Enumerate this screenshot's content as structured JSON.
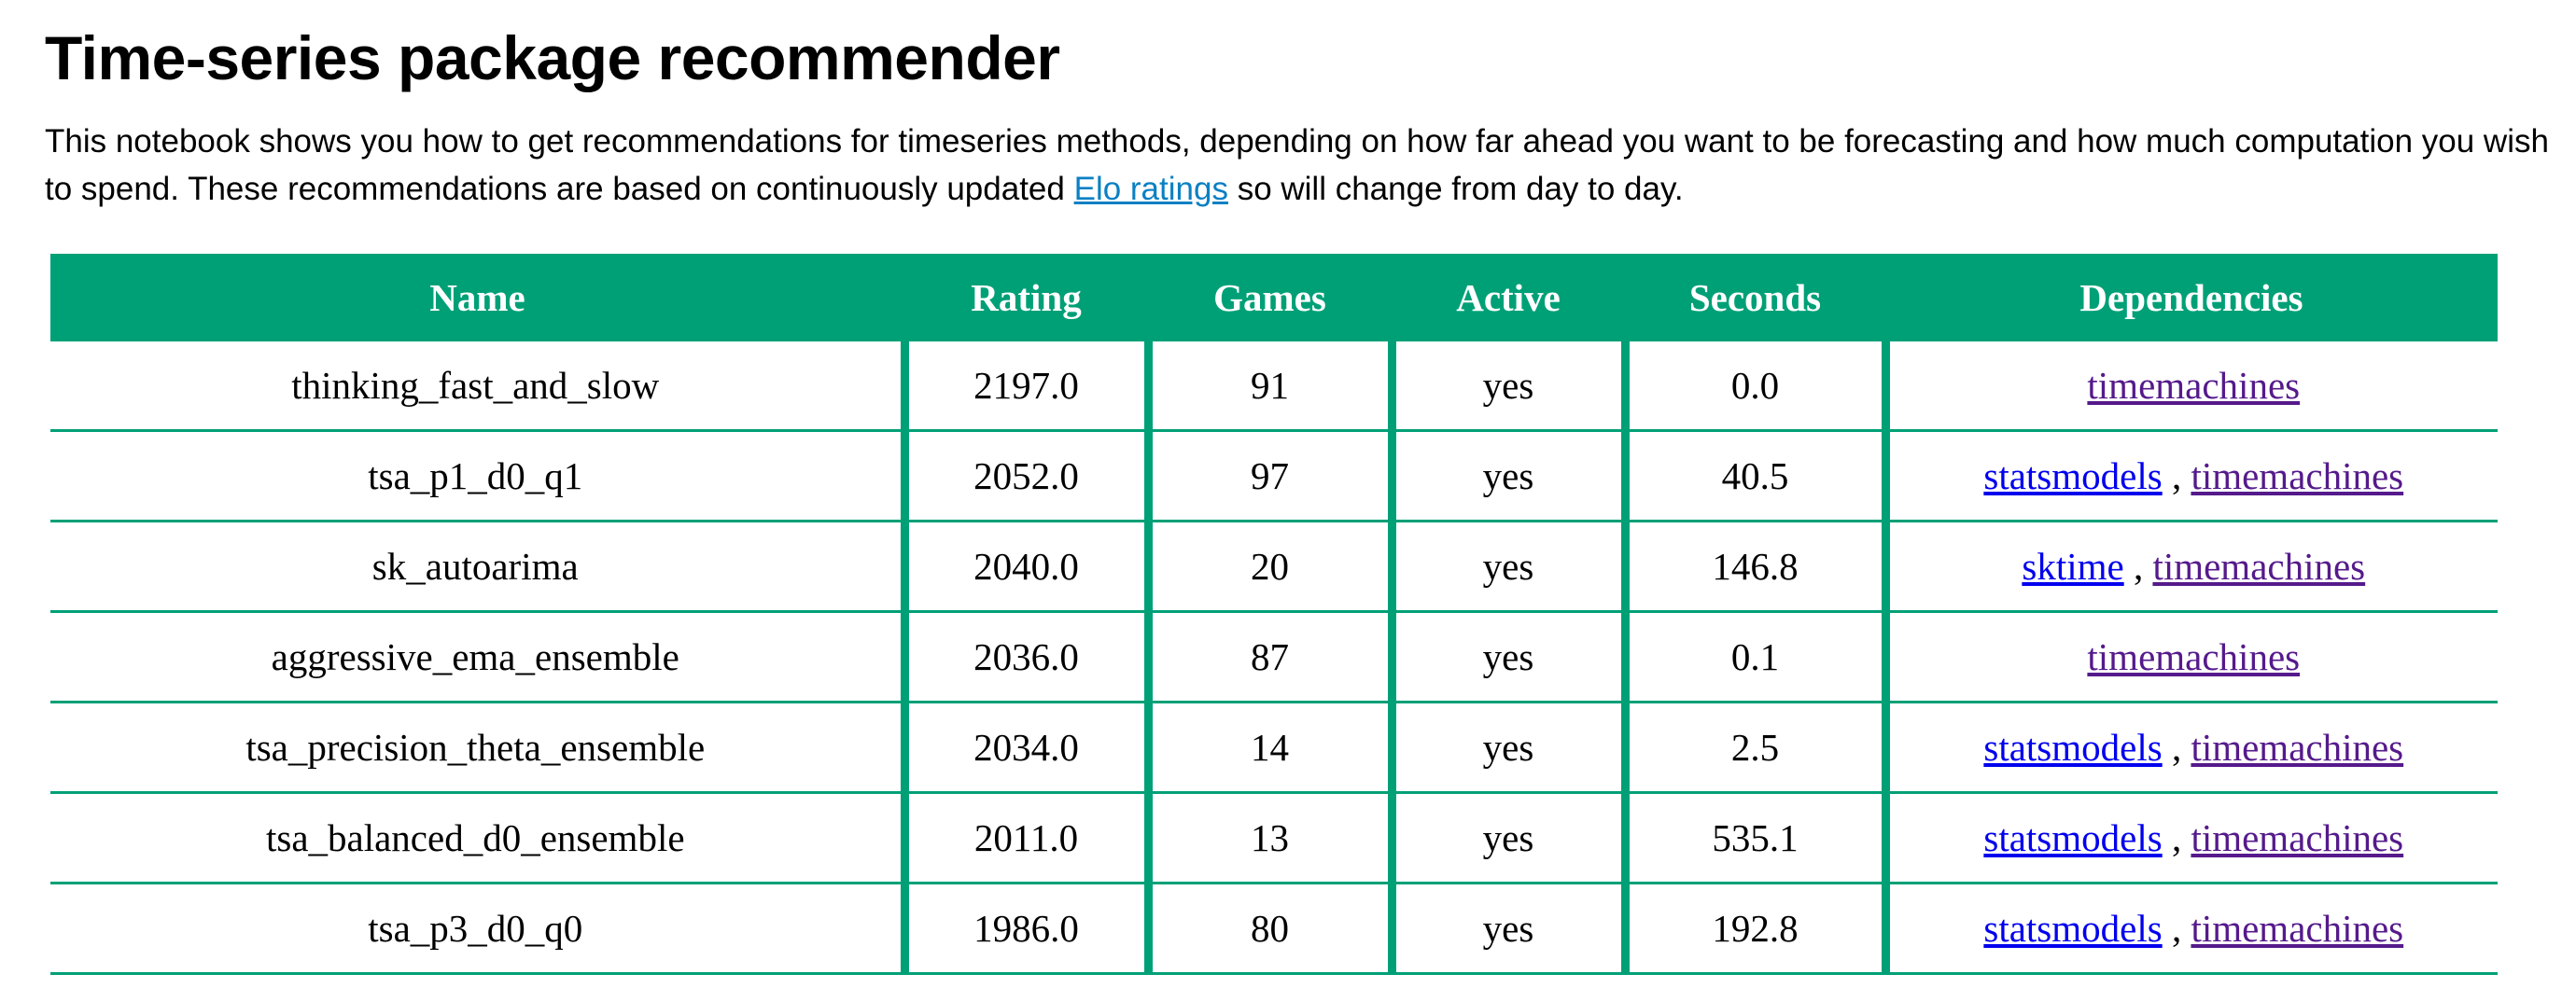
{
  "page": {
    "title": "Time-series package recommender",
    "intro_before_link": "This notebook shows you how to get recommendations for timeseries methods, depending on how far ahead you want to be forecasting and how much computation you wish to spend. These recommendations are based on continuously updated ",
    "intro_link": "Elo ratings",
    "intro_after_link": " so will change from day to day."
  },
  "table": {
    "headers": [
      "Name",
      "Rating",
      "Games",
      "Active",
      "Seconds",
      "Dependencies"
    ],
    "rows": [
      {
        "name": "thinking_fast_and_slow",
        "rating": "2197.0",
        "games": "91",
        "active": "yes",
        "seconds": "0.0",
        "deps": [
          "timemachines"
        ]
      },
      {
        "name": "tsa_p1_d0_q1",
        "rating": "2052.0",
        "games": "97",
        "active": "yes",
        "seconds": "40.5",
        "deps": [
          "statsmodels",
          "timemachines"
        ]
      },
      {
        "name": "sk_autoarima",
        "rating": "2040.0",
        "games": "20",
        "active": "yes",
        "seconds": "146.8",
        "deps": [
          "sktime",
          "timemachines"
        ]
      },
      {
        "name": "aggressive_ema_ensemble",
        "rating": "2036.0",
        "games": "87",
        "active": "yes",
        "seconds": "0.1",
        "deps": [
          "timemachines"
        ]
      },
      {
        "name": "tsa_precision_theta_ensemble",
        "rating": "2034.0",
        "games": "14",
        "active": "yes",
        "seconds": "2.5",
        "deps": [
          "statsmodels",
          "timemachines"
        ]
      },
      {
        "name": "tsa_balanced_d0_ensemble",
        "rating": "2011.0",
        "games": "13",
        "active": "yes",
        "seconds": "535.1",
        "deps": [
          "statsmodels",
          "timemachines"
        ]
      },
      {
        "name": "tsa_p3_d0_q0",
        "rating": "1986.0",
        "games": "80",
        "active": "yes",
        "seconds": "192.8",
        "deps": [
          "statsmodels",
          "timemachines"
        ]
      }
    ]
  },
  "colors": {
    "table_accent": "#00a077",
    "link": "#0b80c3",
    "dep_link_unvisited": "#0000ee",
    "dep_link_visited": "#551a8b"
  }
}
